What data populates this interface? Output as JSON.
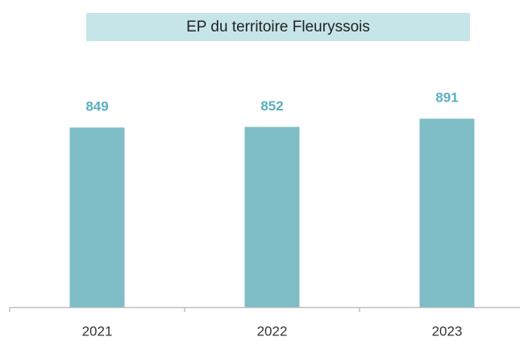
{
  "chart_data": {
    "type": "bar",
    "title": "EP du territoire Fleuryssois",
    "categories": [
      "2021",
      "2022",
      "2023"
    ],
    "values": [
      849,
      852,
      891
    ],
    "color": "#7fbdc7",
    "label_color": "#5aaec1",
    "title_background": "#c6e5e8",
    "ylim": [
      0,
      1000
    ]
  }
}
